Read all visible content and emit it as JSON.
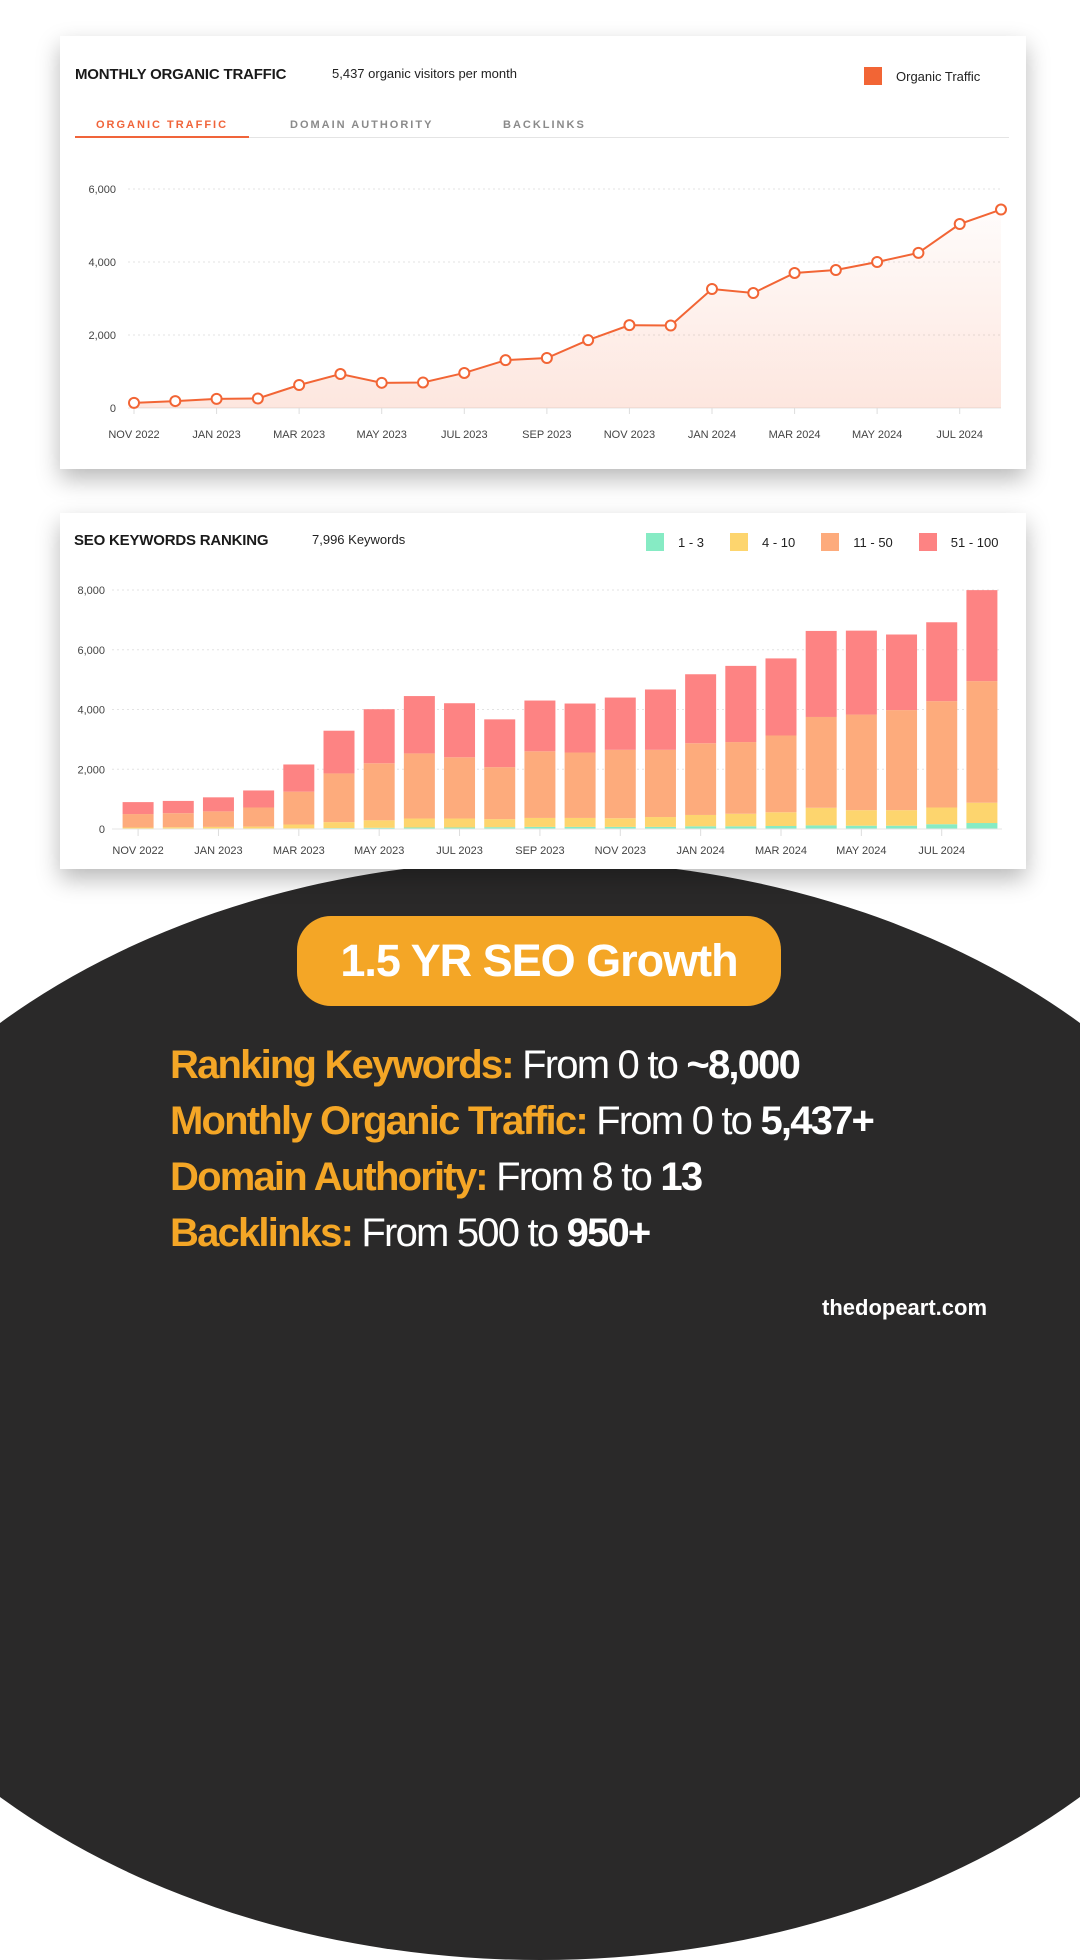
{
  "traffic_card": {
    "title": "MONTHLY ORGANIC TRAFFIC",
    "subtitle": "5,437 organic visitors per month",
    "legend_label": "Organic Traffic",
    "legend_color": "#f26535",
    "tabs": [
      {
        "label": "ORGANIC TRAFFIC",
        "active": true
      },
      {
        "label": "DOMAIN AUTHORITY",
        "active": false
      },
      {
        "label": "BACKLINKS",
        "active": false
      }
    ]
  },
  "keywords_card": {
    "title": "SEO KEYWORDS RANKING",
    "subtitle": "7,996 Keywords",
    "legend": [
      {
        "label": "1 - 3",
        "color": "#86ebc4"
      },
      {
        "label": "4 - 10",
        "color": "#fdd56e"
      },
      {
        "label": "11 - 50",
        "color": "#fdab7c"
      },
      {
        "label": "51 - 100",
        "color": "#fd8383"
      }
    ]
  },
  "summary": {
    "badge": "1.5 YR SEO Growth",
    "stats": [
      {
        "key": "Ranking Keywords:",
        "from": " From 0 to ",
        "value": "~8,000"
      },
      {
        "key": "Monthly Organic Traffic:",
        "from": " From 0 to ",
        "value": "5,437+"
      },
      {
        "key": "Domain Authority:",
        "from": " From 8 to ",
        "value": "13"
      },
      {
        "key": "Backlinks:",
        "from": " From 500  to ",
        "value": "950+"
      }
    ],
    "brand": "thedopeart.com"
  },
  "chart_data": [
    {
      "type": "line",
      "title": "MONTHLY ORGANIC TRAFFIC",
      "subtitle": "5,437 organic visitors per month",
      "legend": [
        "Organic Traffic"
      ],
      "legend_position": "top-right",
      "grid": true,
      "xlabel": "",
      "ylabel": "",
      "ylim": [
        0,
        6000
      ],
      "yticks": [
        0,
        2000,
        4000,
        6000
      ],
      "ytick_labels": [
        "0",
        "2,000",
        "4,000",
        "6,000"
      ],
      "xtick_labels": [
        "NOV 2022",
        "JAN 2023",
        "MAR 2023",
        "MAY 2023",
        "JUL 2023",
        "SEP 2023",
        "NOV 2023",
        "JAN 2024",
        "MAR 2024",
        "MAY 2024",
        "JUL 2024"
      ],
      "x": [
        "Nov 2022",
        "Dec 2022",
        "Jan 2023",
        "Feb 2023",
        "Mar 2023",
        "Apr 2023",
        "May 2023",
        "Jun 2023",
        "Jul 2023",
        "Aug 2023",
        "Sep 2023",
        "Oct 2023",
        "Nov 2023",
        "Dec 2023",
        "Jan 2024",
        "Feb 2024",
        "Mar 2024",
        "Apr 2024",
        "May 2024",
        "Jun 2024",
        "Jul 2024",
        "Aug 2024"
      ],
      "series": [
        {
          "name": "Organic Traffic",
          "color": "#f26535",
          "values": [
            140,
            190,
            250,
            260,
            630,
            930,
            690,
            700,
            960,
            1310,
            1370,
            1860,
            2270,
            2260,
            3260,
            3150,
            3700,
            3780,
            4000,
            4250,
            5040,
            5437
          ]
        }
      ]
    },
    {
      "type": "bar",
      "stacked": true,
      "title": "SEO KEYWORDS RANKING",
      "subtitle": "7,996 Keywords",
      "legend_position": "top-right",
      "grid": true,
      "xlabel": "",
      "ylabel": "",
      "ylim": [
        0,
        8000
      ],
      "yticks": [
        0,
        2000,
        4000,
        6000,
        8000
      ],
      "ytick_labels": [
        "0",
        "2,000",
        "4,000",
        "6,000",
        "8,000"
      ],
      "xtick_labels": [
        "NOV 2022",
        "JAN 2023",
        "MAR 2023",
        "MAY 2023",
        "JUL 2023",
        "SEP 2023",
        "NOV 2023",
        "JAN 2024",
        "MAR 2024",
        "MAY 2024",
        "JUL 2024"
      ],
      "categories": [
        "Nov 2022",
        "Dec 2022",
        "Jan 2023",
        "Feb 2023",
        "Mar 2023",
        "Apr 2023",
        "May 2023",
        "Jun 2023",
        "Jul 2023",
        "Aug 2023",
        "Sep 2023",
        "Oct 2023",
        "Nov 2023",
        "Dec 2023",
        "Jan 2024",
        "Feb 2024",
        "Mar 2024",
        "Apr 2024",
        "May 2024",
        "Jun 2024",
        "Jul 2024",
        "Aug 2024"
      ],
      "series": [
        {
          "name": "1 - 3",
          "color": "#86ebc4",
          "values": [
            10,
            10,
            10,
            10,
            20,
            30,
            40,
            50,
            50,
            60,
            70,
            70,
            70,
            70,
            90,
            90,
            100,
            120,
            110,
            110,
            160,
            200
          ]
        },
        {
          "name": "4 - 10",
          "color": "#fdd56e",
          "values": [
            40,
            50,
            60,
            70,
            130,
            200,
            250,
            300,
            300,
            270,
            300,
            300,
            290,
            330,
            380,
            420,
            460,
            590,
            520,
            520,
            560,
            680
          ]
        },
        {
          "name": "11 - 50",
          "color": "#fdab7c",
          "values": [
            450,
            470,
            520,
            640,
            1100,
            1630,
            1910,
            2180,
            2050,
            1740,
            2230,
            2190,
            2290,
            2250,
            2400,
            2400,
            2570,
            3040,
            3200,
            3350,
            3560,
            4070
          ]
        },
        {
          "name": "51 - 100",
          "color": "#fd8383",
          "values": [
            400,
            410,
            470,
            570,
            910,
            1430,
            1810,
            1920,
            1810,
            1600,
            1700,
            1640,
            1750,
            2020,
            2310,
            2550,
            2580,
            2880,
            2810,
            2530,
            2640,
            3046
          ]
        }
      ]
    }
  ]
}
